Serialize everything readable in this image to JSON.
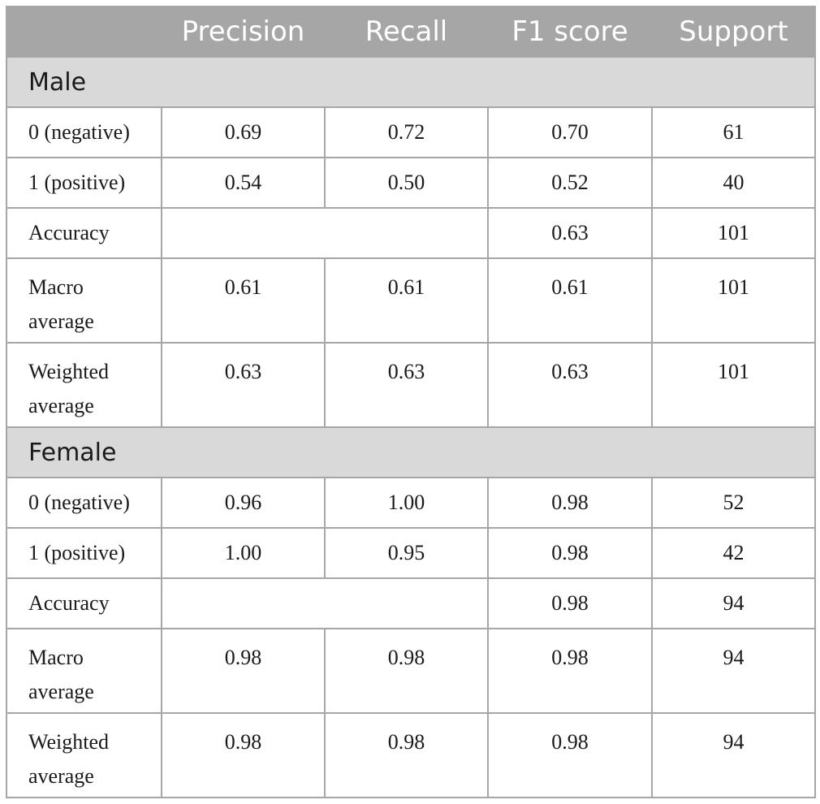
{
  "table": {
    "headers": [
      "",
      "Precision",
      "Recall",
      "F1 score",
      "Support"
    ],
    "groups": [
      {
        "title": "Male",
        "rows": [
          {
            "label": "0 (negative)",
            "precision": "0.69",
            "recall": "0.72",
            "f1": "0.70",
            "support": "61"
          },
          {
            "label": "1 (positive)",
            "precision": "0.54",
            "recall": "0.50",
            "f1": "0.52",
            "support": "40"
          },
          {
            "label": "Accuracy",
            "f1": "0.63",
            "support": "101"
          },
          {
            "label_line1": "Macro",
            "label_line2": "average",
            "precision": "0.61",
            "recall": "0.61",
            "f1": "0.61",
            "support": "101"
          },
          {
            "label_line1": "Weighted",
            "label_line2": "average",
            "precision": "0.63",
            "recall": "0.63",
            "f1": "0.63",
            "support": "101"
          }
        ]
      },
      {
        "title": "Female",
        "rows": [
          {
            "label": "0 (negative)",
            "precision": "0.96",
            "recall": "1.00",
            "f1": "0.98",
            "support": "52"
          },
          {
            "label": "1 (positive)",
            "precision": "1.00",
            "recall": "0.95",
            "f1": "0.98",
            "support": "42"
          },
          {
            "label": "Accuracy",
            "f1": "0.98",
            "support": "94"
          },
          {
            "label_line1": "Macro",
            "label_line2": "average",
            "precision": "0.98",
            "recall": "0.98",
            "f1": "0.98",
            "support": "94"
          },
          {
            "label_line1": "Weighted",
            "label_line2": "average",
            "precision": "0.98",
            "recall": "0.98",
            "f1": "0.98",
            "support": "94"
          }
        ]
      }
    ]
  }
}
